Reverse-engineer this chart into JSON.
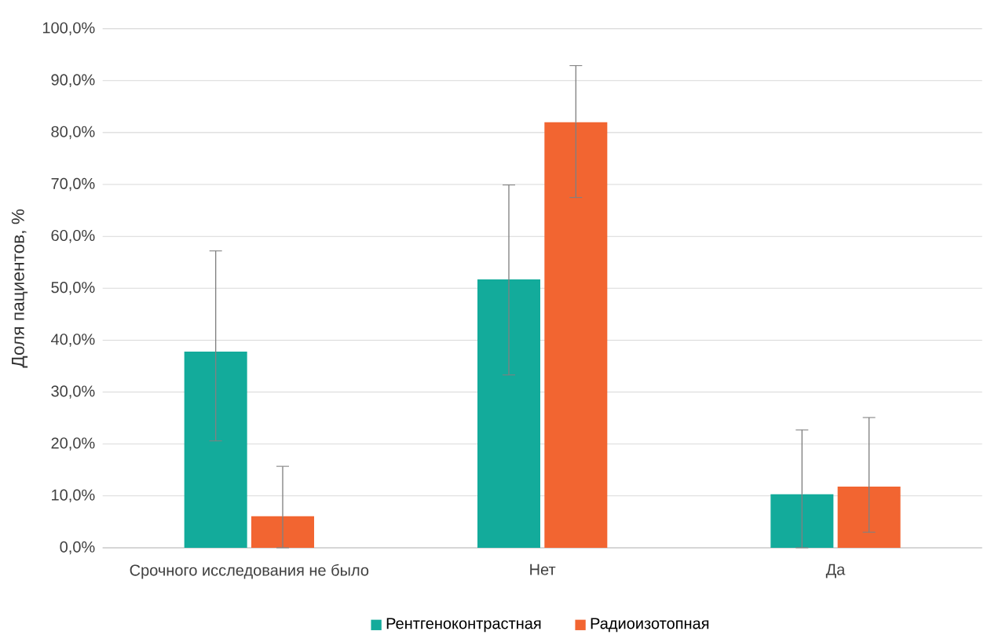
{
  "chart_data": {
    "type": "bar",
    "ylabel": "Доля пациентов, %",
    "categories": [
      "Срочного исследования не было",
      "Нет",
      "Да"
    ],
    "series": [
      {
        "name": "Рентгеноконтрастная",
        "color": "#13ab9b",
        "values": [
          37.8,
          51.7,
          10.3
        ],
        "errors": [
          [
            20.6,
            57.2
          ],
          [
            33.3,
            69.9
          ],
          [
            0,
            22.7
          ]
        ]
      },
      {
        "name": "Радиоизотопная",
        "color": "#f26531",
        "values": [
          6.1,
          82.0,
          11.8
        ],
        "errors": [
          [
            0,
            15.7
          ],
          [
            67.5,
            92.9
          ],
          [
            3.0,
            25.1
          ]
        ]
      }
    ],
    "ylim": [
      0,
      100
    ],
    "yticks": [
      {
        "value": 0,
        "label": "0,0%"
      },
      {
        "value": 10,
        "label": "10,0%"
      },
      {
        "value": 20,
        "label": "20,0%"
      },
      {
        "value": 30,
        "label": "30,0%"
      },
      {
        "value": 40,
        "label": "40,0%"
      },
      {
        "value": 50,
        "label": "50,0%"
      },
      {
        "value": 60,
        "label": "60,0%"
      },
      {
        "value": 70,
        "label": "70,0%"
      },
      {
        "value": 80,
        "label": "80,0%"
      },
      {
        "value": 90,
        "label": "90,0%"
      },
      {
        "value": 100,
        "label": "100,0%"
      }
    ],
    "grid": "y",
    "legend": "bottom"
  }
}
